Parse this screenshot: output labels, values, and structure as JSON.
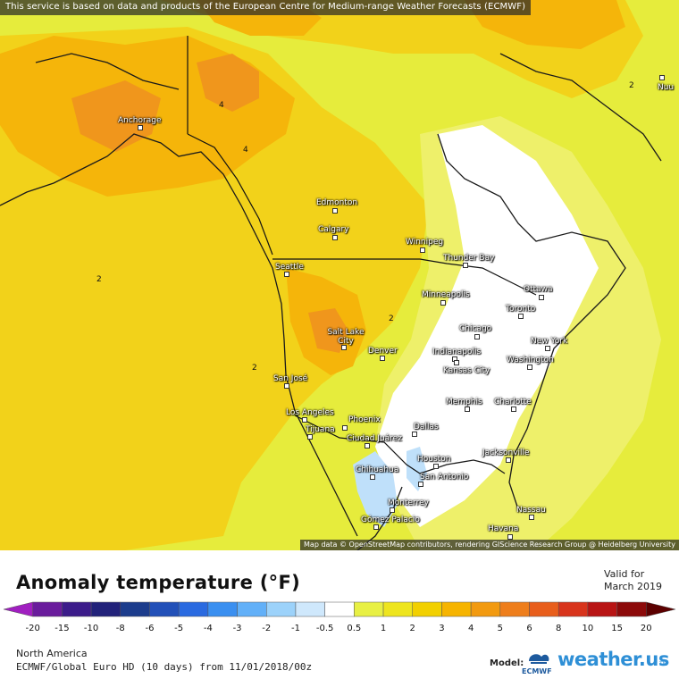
{
  "map": {
    "attribution_top": "This service is based on data and products of the European Centre for Medium-range Weather Forecasts (ECMWF)",
    "attribution_bottom": "Map data © OpenStreetMap contributors, rendering GIScience Research Group @ Heidelberg University",
    "cities": [
      {
        "name": "Anchorage"
      },
      {
        "name": "Edmonton"
      },
      {
        "name": "Calgary"
      },
      {
        "name": "Winnipeg"
      },
      {
        "name": "Thunder Bay"
      },
      {
        "name": "Seattle"
      },
      {
        "name": "Minneapolis"
      },
      {
        "name": "Ottawa"
      },
      {
        "name": "Toronto"
      },
      {
        "name": "Chicago"
      },
      {
        "name": "Salt Lake City"
      },
      {
        "name": "Denver"
      },
      {
        "name": "Indianapolis"
      },
      {
        "name": "New York"
      },
      {
        "name": "Kansas City"
      },
      {
        "name": "Washington"
      },
      {
        "name": "San José"
      },
      {
        "name": "Memphis"
      },
      {
        "name": "Charlotte"
      },
      {
        "name": "Los Angeles"
      },
      {
        "name": "Phoenix"
      },
      {
        "name": "Dallas"
      },
      {
        "name": "Tijuana"
      },
      {
        "name": "Ciudad Juárez"
      },
      {
        "name": "Jacksonville"
      },
      {
        "name": "Houston"
      },
      {
        "name": "Chihuahua"
      },
      {
        "name": "San Antonio"
      },
      {
        "name": "Monterrey"
      },
      {
        "name": "Nassau"
      },
      {
        "name": "Gómez Palacio"
      },
      {
        "name": "Havana"
      },
      {
        "name": "Nuu"
      }
    ],
    "contour_labels": [
      "4",
      "4",
      "2",
      "2",
      "2",
      "2"
    ]
  },
  "legend": {
    "title": "Anomaly temperature (°F)",
    "valid_label": "Valid for",
    "valid_value": "March 2019",
    "ticks": [
      "-20",
      "-15",
      "-10",
      "-8",
      "-6",
      "-5",
      "-4",
      "-3",
      "-2",
      "-1",
      "-0.5",
      "0.5",
      "1",
      "2",
      "3",
      "4",
      "5",
      "6",
      "8",
      "10",
      "15",
      "20"
    ],
    "colors": [
      "#a01fc0",
      "#6a1c9c",
      "#3c1c8a",
      "#22227a",
      "#1c3c8c",
      "#2250b8",
      "#2a6ae0",
      "#3a8ff0",
      "#62b0f8",
      "#9cd2fa",
      "#cfe8fc",
      "#ffffff",
      "#e8f044",
      "#eee51e",
      "#f2d000",
      "#f6b400",
      "#f29a10",
      "#ee7e1c",
      "#e85e1c",
      "#d8341c",
      "#b81414",
      "#8c0a0a",
      "#5c0000"
    ],
    "region": "North America",
    "model_run": "ECMWF/Global Euro HD (10 days) from 11/01/2018/00z",
    "model_label": "Model:",
    "ecmwf_text": "ECMWF",
    "brand": "weather.us",
    "brand_tm": "TM"
  }
}
